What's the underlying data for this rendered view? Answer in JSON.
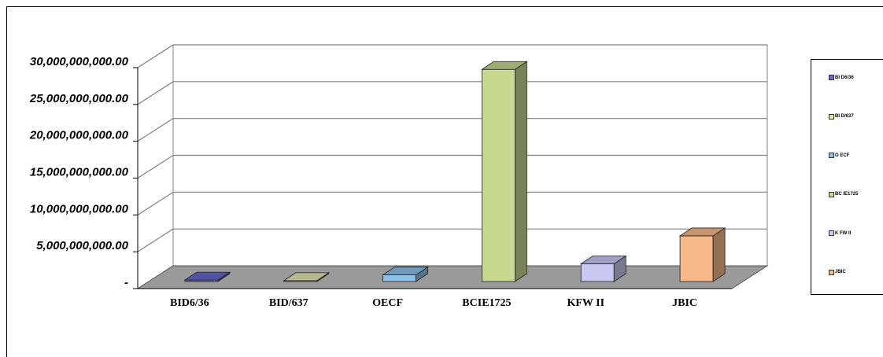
{
  "chart_data": {
    "type": "bar",
    "categories": [
      "BID6/36",
      "BID/637",
      "OECF",
      "BCIE1725",
      "KFW II",
      "JBIC"
    ],
    "values": [
      200000000,
      120000000,
      900000000,
      28800000000,
      2400000000,
      6200000000
    ],
    "ylim": [
      0,
      30000000000
    ],
    "yticks": [
      0,
      5000000000,
      10000000000,
      15000000000,
      20000000000,
      25000000000,
      30000000000
    ],
    "ytick_labels": [
      "-",
      "5,000,000,000.00",
      "10,000,000,000.00",
      "15,000,000,000.00",
      "20,000,000,000.00",
      "25,000,000,000.00",
      "30,000,000,000.00"
    ],
    "colors": [
      "#6666cc",
      "#e6e6b3",
      "#8fbfe6",
      "#c6d98f",
      "#c8c8f2",
      "#f7b98a"
    ],
    "legend_labels": [
      "BI D6/36",
      "BI D/637",
      "O ECF",
      "BC IE1725",
      "K FW II",
      "JBIC"
    ],
    "legend_placement": "right",
    "grid": true,
    "style": "3d"
  }
}
